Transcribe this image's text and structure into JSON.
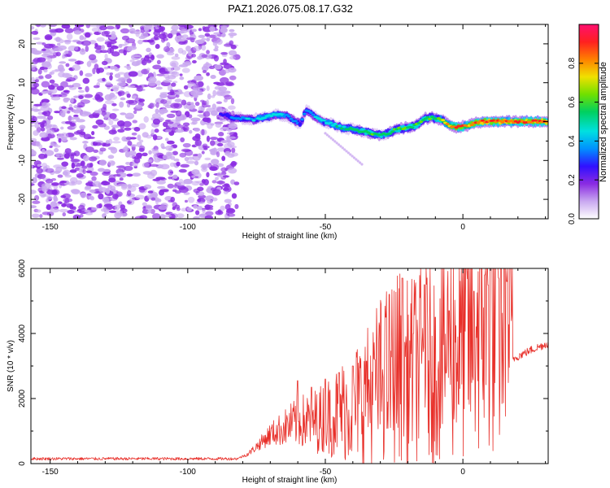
{
  "title": "PAZ1.2026.075.08.17.G32",
  "chart_data": [
    {
      "type": "heatmap",
      "name": "spectrogram",
      "xlabel": "Height of straight line (km)",
      "ylabel": "Frequency (Hz)",
      "xlim": [
        -157,
        31
      ],
      "ylim": [
        -25,
        25
      ],
      "xticks": [
        -150,
        -100,
        -50,
        0
      ],
      "yticks": [
        -20,
        -10,
        0,
        10,
        20
      ],
      "noise_region_x": [
        -157,
        -81
      ],
      "signal_track": {
        "x": [
          -88,
          -84,
          -80,
          -76,
          -72,
          -68,
          -64,
          -61,
          -59,
          -57,
          -55,
          -52,
          -48,
          -44,
          -40,
          -36,
          -33,
          -30,
          -27,
          -24,
          -20,
          -17,
          -14,
          -11,
          -8,
          -5,
          -2,
          1,
          4,
          7,
          10,
          14,
          18,
          22,
          26,
          31
        ],
        "freq": [
          2.0,
          1.0,
          0.8,
          0.5,
          1.2,
          1.8,
          1.5,
          0.0,
          -0.5,
          3.0,
          2.0,
          0.5,
          -0.5,
          -1.5,
          -2.0,
          -2.5,
          -3.0,
          -3.5,
          -3.0,
          -2.0,
          -1.5,
          -1.0,
          0.8,
          1.0,
          0.5,
          -1.0,
          -1.5,
          -1.2,
          -0.5,
          0.0,
          0.0,
          0.0,
          0.0,
          0.0,
          0.0,
          0.0
        ],
        "amplitude": [
          0.3,
          0.35,
          0.4,
          0.45,
          0.5,
          0.5,
          0.45,
          0.4,
          0.35,
          0.4,
          0.45,
          0.45,
          0.5,
          0.55,
          0.55,
          0.6,
          0.6,
          0.6,
          0.6,
          0.62,
          0.65,
          0.65,
          0.65,
          0.6,
          0.7,
          0.85,
          0.95,
          0.9,
          0.9,
          0.95,
          0.95,
          0.95,
          0.95,
          0.95,
          0.95,
          0.95
        ]
      },
      "colorbar": {
        "label": "Normalized spectral amplitude",
        "range": [
          0,
          1
        ],
        "ticks": [
          0.0,
          0.2,
          0.4,
          0.6,
          0.8
        ],
        "tick_labels": [
          "0.0",
          "0.2",
          "0.4",
          "0.6",
          "0.8"
        ],
        "colors": [
          "#ffffff",
          "#c9a8f0",
          "#8a2be2",
          "#3010ff",
          "#0090ff",
          "#00e0e0",
          "#00d060",
          "#70e000",
          "#f0e000",
          "#ff8000",
          "#ff2020",
          "#ff1070"
        ]
      }
    },
    {
      "type": "line",
      "name": "snr",
      "xlabel": "Height of straight line (km)",
      "ylabel": "SNR (10 * v/v)",
      "xlim": [
        -157,
        31
      ],
      "ylim": [
        0,
        6000
      ],
      "xticks": [
        -150,
        -100,
        -50,
        0
      ],
      "yticks": [
        0,
        2000,
        4000,
        6000
      ],
      "color": "#e8302a",
      "envelope": {
        "x": [
          -157,
          -120,
          -90,
          -82,
          -78,
          -74,
          -70,
          -65,
          -60,
          -55,
          -50,
          -45,
          -40,
          -35,
          -30,
          -25,
          -22,
          -20,
          -15,
          -10,
          -5,
          0,
          5,
          10,
          12,
          15,
          17,
          18,
          20,
          25,
          31
        ],
        "y": [
          150,
          150,
          150,
          150,
          300,
          600,
          900,
          1100,
          1300,
          1300,
          1400,
          1600,
          1800,
          2100,
          2600,
          2900,
          3100,
          2800,
          3100,
          3300,
          3600,
          3900,
          4400,
          4900,
          5000,
          5100,
          5100,
          3200,
          3300,
          3500,
          3700
        ]
      },
      "spikes": [
        {
          "x": -60,
          "y": 2550
        },
        {
          "x": -55,
          "y": 2350
        },
        {
          "x": -50,
          "y": 2600
        },
        {
          "x": -45,
          "y": 2800
        },
        {
          "x": -40,
          "y": 3000
        },
        {
          "x": -35,
          "y": 3150
        },
        {
          "x": -32,
          "y": 3200
        },
        {
          "x": -28,
          "y": 4500
        },
        {
          "x": -22,
          "y": 5700
        },
        {
          "x": -18,
          "y": 4000
        },
        {
          "x": -14,
          "y": 5500
        },
        {
          "x": -10,
          "y": 4500
        },
        {
          "x": -5,
          "y": 4700
        },
        {
          "x": 4,
          "y": 5300
        },
        {
          "x": 8,
          "y": 5800
        },
        {
          "x": 10,
          "y": 6000
        },
        {
          "x": 13,
          "y": 5700
        },
        {
          "x": 16,
          "y": 5600
        }
      ]
    }
  ]
}
